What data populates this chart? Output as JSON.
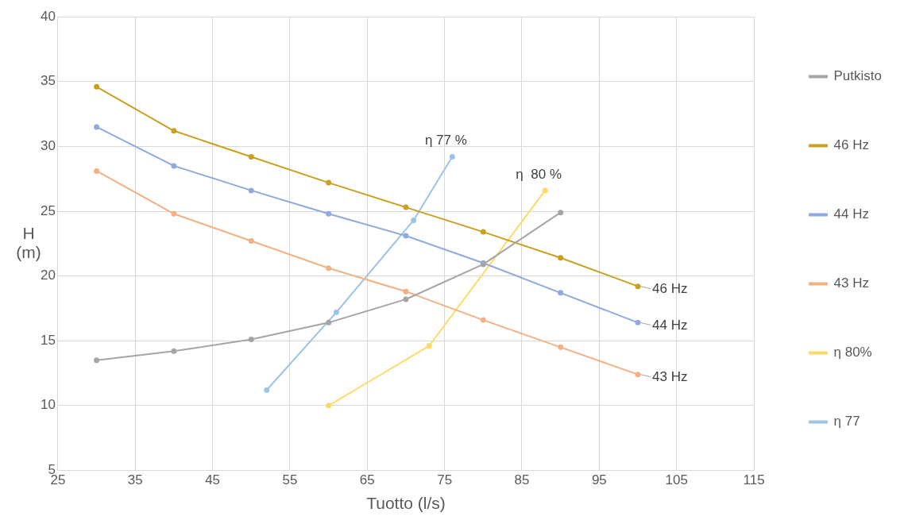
{
  "chart_data": {
    "type": "line",
    "xlabel": "Tuotto (l/s)",
    "ylabel": "H (m)",
    "xlim": [
      25,
      115
    ],
    "xticks": [
      25,
      35,
      45,
      55,
      65,
      75,
      85,
      95,
      105,
      115
    ],
    "ylim": [
      5,
      40
    ],
    "yticks": [
      5,
      10,
      15,
      20,
      25,
      30,
      35,
      40
    ],
    "grid": true,
    "legend": "right",
    "marker": "circle",
    "line_style": "solid",
    "series": [
      {
        "name": "Putkisto",
        "color": "#a5a5a5",
        "x": [
          30,
          40,
          50,
          60,
          70,
          80,
          90
        ],
        "values": [
          13.5,
          14.2,
          15.1,
          16.4,
          18.2,
          20.9,
          24.9
        ]
      },
      {
        "name": "46 Hz",
        "color": "#c9a020",
        "x": [
          30,
          40,
          50,
          60,
          70,
          80,
          90,
          100
        ],
        "values": [
          34.6,
          31.2,
          29.2,
          27.2,
          25.3,
          23.4,
          21.4,
          19.2
        ]
      },
      {
        "name": "44 Hz",
        "color": "#8faadc",
        "x": [
          30,
          40,
          50,
          60,
          70,
          80,
          90,
          100
        ],
        "values": [
          31.5,
          28.5,
          26.6,
          24.8,
          23.1,
          21,
          18.7,
          16.4
        ]
      },
      {
        "name": "43 Hz",
        "color": "#f4b183",
        "x": [
          30,
          40,
          50,
          60,
          70,
          80,
          90,
          100
        ],
        "values": [
          28.1,
          24.8,
          22.7,
          20.6,
          18.8,
          16.6,
          14.5,
          12.4
        ]
      },
      {
        "name": "η 80%",
        "color": "#ffd966",
        "x": [
          60,
          73,
          88
        ],
        "values": [
          10,
          14.6,
          26.6
        ]
      },
      {
        "name": "η 77",
        "color": "#9dc3e6",
        "x": [
          52,
          61,
          71,
          76
        ],
        "values": [
          11.2,
          17.2,
          24.3,
          29.2
        ]
      }
    ],
    "annotations": [
      {
        "text": "η 77 %",
        "x": 76,
        "y": 29.2
      },
      {
        "text": "η  80 %",
        "x": 88,
        "y": 26.6
      },
      {
        "text": "46 Hz",
        "x": 100,
        "y": 19.2
      },
      {
        "text": "44 Hz",
        "x": 100,
        "y": 16.4
      },
      {
        "text": "43 Hz",
        "x": 100,
        "y": 12.4
      }
    ]
  }
}
